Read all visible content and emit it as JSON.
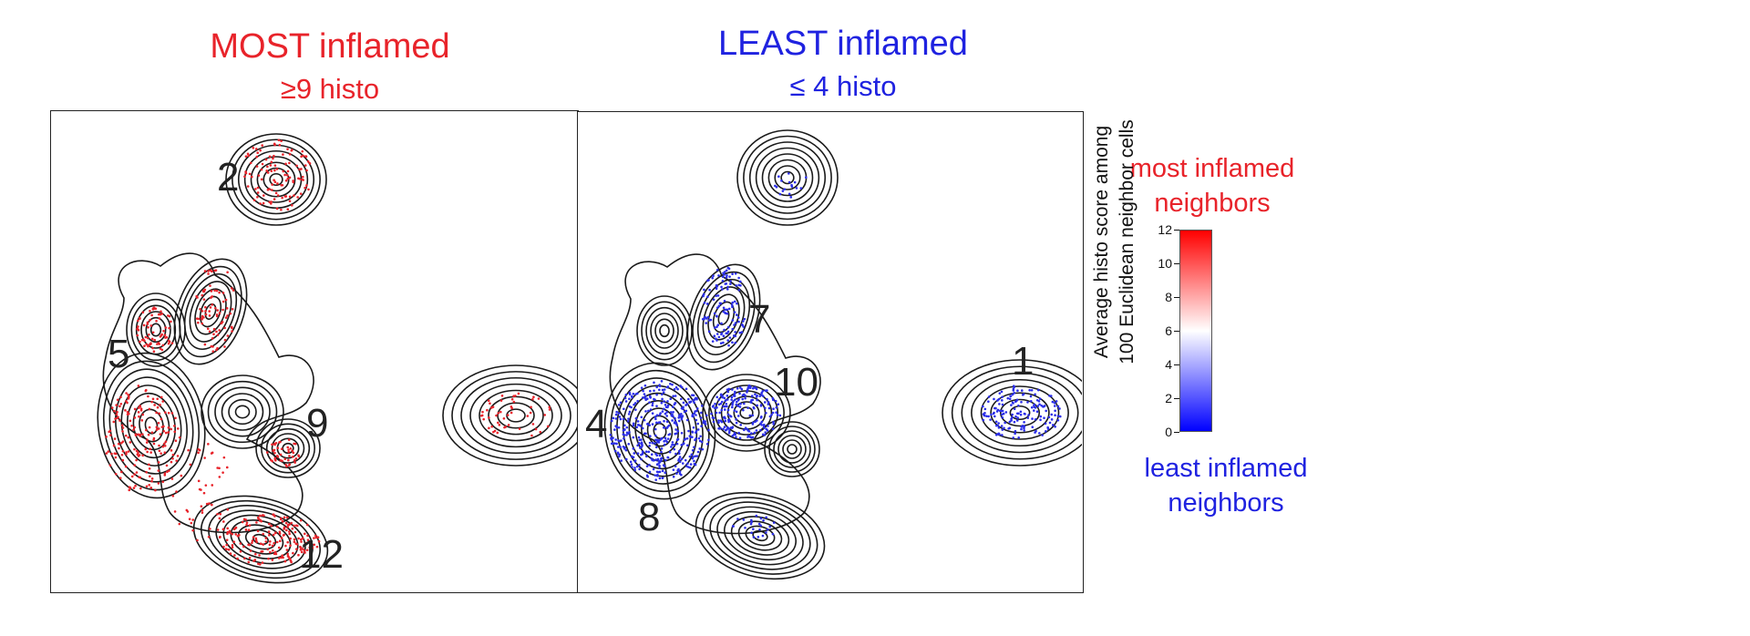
{
  "chart_data": [
    {
      "type": "scatter",
      "title": "MOST inflamed",
      "subtitle": "≥9 histo",
      "point_color": "#e8232a",
      "cluster_labels": [
        "2",
        "5",
        "9",
        "12"
      ]
    },
    {
      "type": "scatter",
      "title": "LEAST inflamed",
      "subtitle": "≤ 4 histo",
      "point_color": "#2b2ee8",
      "cluster_labels": [
        "7",
        "10",
        "1",
        "4",
        "8"
      ]
    }
  ],
  "colorbar": {
    "top_label": "most inflamed\nneighbors",
    "bottom_label": "least inflamed\nneighbors",
    "axis_label_line1": "Average histo score among",
    "axis_label_line2": "100 Euclidean neighbor cells",
    "ticks": [
      "0",
      "2",
      "4",
      "6",
      "8",
      "10",
      "12"
    ],
    "range": [
      0,
      12
    ],
    "low_color": "#0000ff",
    "mid_color": "#ffffff",
    "high_color": "#ff0000"
  }
}
